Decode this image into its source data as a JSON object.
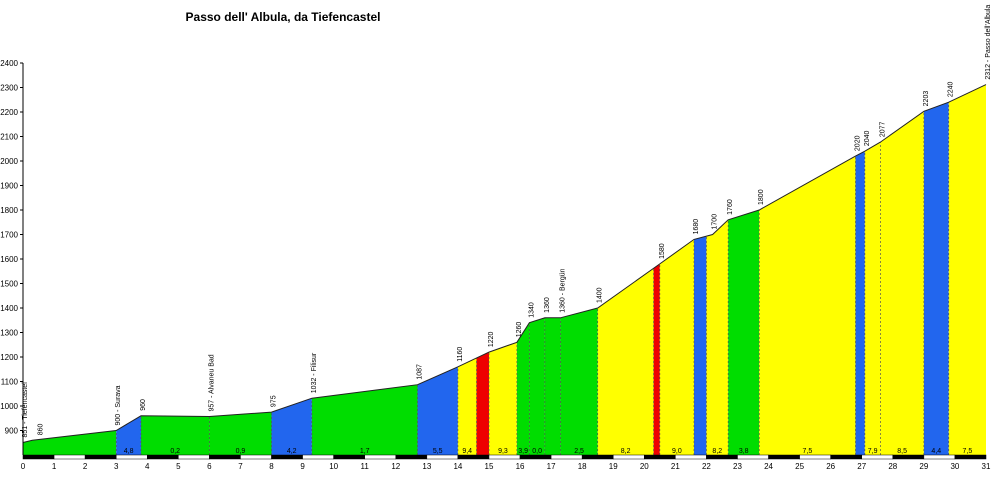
{
  "chart_data": {
    "type": "area",
    "title": "Passo dell' Albula, da Tiefencastel",
    "xlabel": "",
    "ylabel": "",
    "xlim": [
      0,
      31
    ],
    "ylim": [
      800,
      2400
    ],
    "x_ticks": [
      "0",
      "1",
      "2",
      "3",
      "4",
      "5",
      "6",
      "7",
      "8",
      "9",
      "10",
      "11",
      "12",
      "13",
      "14",
      "15",
      "16",
      "17",
      "18",
      "19",
      "20",
      "21",
      "22",
      "23",
      "24",
      "25",
      "26",
      "27",
      "28",
      "29",
      "30",
      "31"
    ],
    "y_ticks": [
      "900",
      "1000",
      "1100",
      "1200",
      "1300",
      "1400",
      "1500",
      "1600",
      "1700",
      "1800",
      "1900",
      "2000",
      "2100",
      "2200",
      "2300",
      "2400"
    ],
    "grid": false,
    "profile": [
      {
        "km": 0.0,
        "alt": 851
      },
      {
        "km": 0.3,
        "alt": 860
      },
      {
        "km": 3.0,
        "alt": 900
      },
      {
        "km": 3.8,
        "alt": 960
      },
      {
        "km": 6.0,
        "alt": 957
      },
      {
        "km": 8.0,
        "alt": 975
      },
      {
        "km": 9.3,
        "alt": 1032
      },
      {
        "km": 12.7,
        "alt": 1087
      },
      {
        "km": 14.0,
        "alt": 1160
      },
      {
        "km": 15.0,
        "alt": 1220
      },
      {
        "km": 15.9,
        "alt": 1260
      },
      {
        "km": 16.3,
        "alt": 1340
      },
      {
        "km": 16.8,
        "alt": 1360
      },
      {
        "km": 17.3,
        "alt": 1360
      },
      {
        "km": 18.5,
        "alt": 1400
      },
      {
        "km": 20.5,
        "alt": 1580
      },
      {
        "km": 21.6,
        "alt": 1680
      },
      {
        "km": 22.2,
        "alt": 1700
      },
      {
        "km": 22.7,
        "alt": 1760
      },
      {
        "km": 23.7,
        "alt": 1800
      },
      {
        "km": 26.8,
        "alt": 2020
      },
      {
        "km": 27.1,
        "alt": 2040
      },
      {
        "km": 27.6,
        "alt": 2077
      },
      {
        "km": 29.0,
        "alt": 2203
      },
      {
        "km": 29.8,
        "alt": 2240
      },
      {
        "km": 31.0,
        "alt": 2312
      }
    ],
    "segments": [
      {
        "from": 0.0,
        "to": 3.0,
        "color": "#00dd00",
        "gradient": ""
      },
      {
        "from": 3.0,
        "to": 3.8,
        "color": "#2266ee",
        "gradient": "4,8"
      },
      {
        "from": 3.8,
        "to": 6.0,
        "color": "#00dd00",
        "gradient": "0,2"
      },
      {
        "from": 6.0,
        "to": 8.0,
        "color": "#00dd00",
        "gradient": "0,9"
      },
      {
        "from": 8.0,
        "to": 9.3,
        "color": "#2266ee",
        "gradient": "4,2"
      },
      {
        "from": 9.3,
        "to": 12.7,
        "color": "#00dd00",
        "gradient": "1,7"
      },
      {
        "from": 12.7,
        "to": 14.0,
        "color": "#2266ee",
        "gradient": "5,5"
      },
      {
        "from": 14.0,
        "to": 14.6,
        "color": "#ffff00",
        "gradient": "9,4"
      },
      {
        "from": 14.6,
        "to": 15.0,
        "color": "#ee0000",
        "gradient": ""
      },
      {
        "from": 15.0,
        "to": 15.9,
        "color": "#ffff00",
        "gradient": "9,3"
      },
      {
        "from": 15.9,
        "to": 16.3,
        "color": "#00dd00",
        "gradient": "3,9"
      },
      {
        "from": 16.3,
        "to": 16.8,
        "color": "#00dd00",
        "gradient": "0,0"
      },
      {
        "from": 16.8,
        "to": 17.3,
        "color": "#00dd00",
        "gradient": ""
      },
      {
        "from": 17.3,
        "to": 18.5,
        "color": "#00dd00",
        "gradient": "2,5"
      },
      {
        "from": 18.5,
        "to": 20.3,
        "color": "#ffff00",
        "gradient": "8,2"
      },
      {
        "from": 20.3,
        "to": 20.5,
        "color": "#ee0000",
        "gradient": ""
      },
      {
        "from": 20.5,
        "to": 21.6,
        "color": "#ffff00",
        "gradient": "9,0"
      },
      {
        "from": 21.6,
        "to": 22.0,
        "color": "#2266ee",
        "gradient": ""
      },
      {
        "from": 22.0,
        "to": 22.7,
        "color": "#ffff00",
        "gradient": "8,2"
      },
      {
        "from": 22.7,
        "to": 23.7,
        "color": "#00dd00",
        "gradient": "3,8"
      },
      {
        "from": 23.7,
        "to": 26.8,
        "color": "#ffff00",
        "gradient": "7,5"
      },
      {
        "from": 26.8,
        "to": 27.1,
        "color": "#2266ee",
        "gradient": ""
      },
      {
        "from": 27.1,
        "to": 27.6,
        "color": "#ffff00",
        "gradient": "7,9"
      },
      {
        "from": 27.6,
        "to": 29.0,
        "color": "#ffff00",
        "gradient": "8,5"
      },
      {
        "from": 29.0,
        "to": 29.8,
        "color": "#2266ee",
        "gradient": "4,4"
      },
      {
        "from": 29.8,
        "to": 31.0,
        "color": "#ffff00",
        "gradient": "7,5"
      }
    ],
    "dashed_lines_km": [
      3.0,
      3.8,
      6.0,
      8.0,
      9.3,
      12.7,
      14.0,
      14.6,
      15.0,
      15.9,
      16.3,
      16.8,
      17.3,
      18.5,
      20.3,
      20.5,
      21.6,
      22.0,
      22.7,
      23.7,
      26.8,
      27.1,
      27.6,
      29.0,
      29.8
    ],
    "annotations": [
      {
        "km": 0.0,
        "alt": 851,
        "text": "851 - Tiefencastel"
      },
      {
        "km": 0.5,
        "alt": 860,
        "text": "860"
      },
      {
        "km": 3.0,
        "alt": 900,
        "text": "900 - Surava"
      },
      {
        "km": 3.8,
        "alt": 960,
        "text": "960"
      },
      {
        "km": 6.0,
        "alt": 957,
        "text": "957 - Alvaneu Bad"
      },
      {
        "km": 8.0,
        "alt": 975,
        "text": "975"
      },
      {
        "km": 9.3,
        "alt": 1032,
        "text": "1032 - Filisur"
      },
      {
        "km": 12.7,
        "alt": 1087,
        "text": "1087"
      },
      {
        "km": 14.0,
        "alt": 1160,
        "text": "1160"
      },
      {
        "km": 15.0,
        "alt": 1220,
        "text": "1220"
      },
      {
        "km": 15.9,
        "alt": 1260,
        "text": "1260"
      },
      {
        "km": 16.3,
        "alt": 1340,
        "text": "1340"
      },
      {
        "km": 16.8,
        "alt": 1360,
        "text": "1360"
      },
      {
        "km": 17.3,
        "alt": 1360,
        "text": "1360 - Bergün"
      },
      {
        "km": 18.5,
        "alt": 1400,
        "text": "1400"
      },
      {
        "km": 20.5,
        "alt": 1580,
        "text": "1580"
      },
      {
        "km": 21.6,
        "alt": 1680,
        "text": "1680"
      },
      {
        "km": 22.2,
        "alt": 1700,
        "text": "1700"
      },
      {
        "km": 22.7,
        "alt": 1760,
        "text": "1760"
      },
      {
        "km": 23.7,
        "alt": 1800,
        "text": "1800"
      },
      {
        "km": 26.8,
        "alt": 2020,
        "text": "2020"
      },
      {
        "km": 27.1,
        "alt": 2040,
        "text": "2040"
      },
      {
        "km": 27.6,
        "alt": 2077,
        "text": "2077"
      },
      {
        "km": 29.0,
        "alt": 2203,
        "text": "2203"
      },
      {
        "km": 29.8,
        "alt": 2240,
        "text": "2240"
      },
      {
        "km": 31.0,
        "alt": 2312,
        "text": "2312 - Passo dell'Albula"
      }
    ]
  }
}
